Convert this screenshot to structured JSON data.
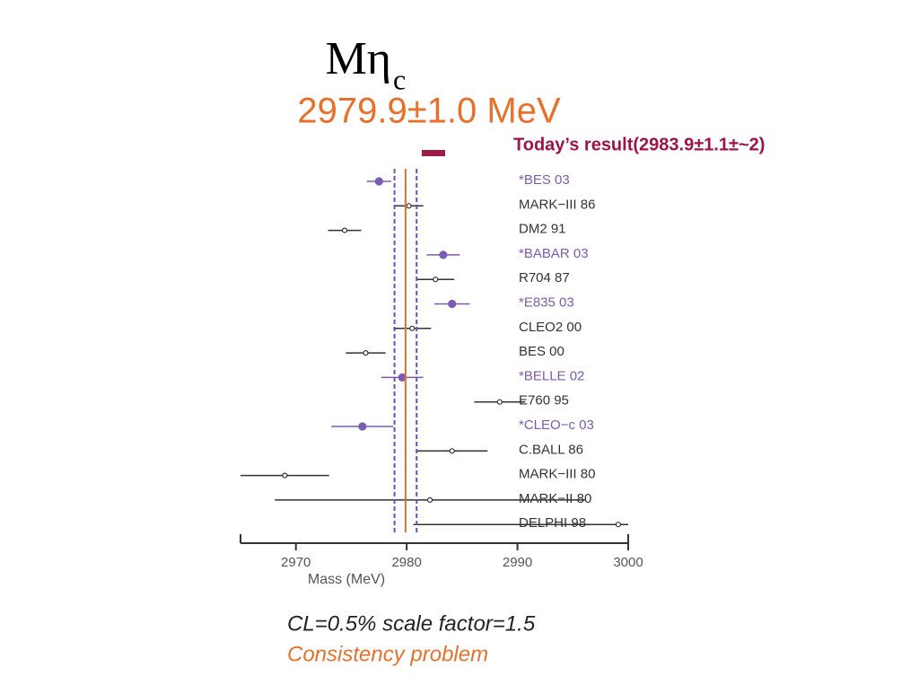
{
  "chart_data": {
    "type": "errorbar",
    "title": "Mη",
    "title_subscript": "c",
    "subtitle": "2979.9±1.0 MeV",
    "annotation": "Today’s result(2983.9±1.1±~2)",
    "categories": [
      "*BES 03",
      "MARK−III 86",
      "DM2 91",
      "*BABAR 03",
      "R704 87",
      "*E835 03",
      "CLEO2 00",
      "BES 00",
      "*BELLE 02",
      "E760 95",
      "*CLEO−c 03",
      "C.BALL 86",
      "MARK−III 80",
      "MARK−II 80",
      "DELPHI 98"
    ],
    "values": [
      2977.5,
      2980.2,
      2974.4,
      2983.3,
      2982.6,
      2984.1,
      2980.5,
      2976.3,
      2979.6,
      2988.4,
      2976.0,
      2984.1,
      2969.0,
      2982.1,
      2999.1
    ],
    "errors": [
      1.1,
      1.3,
      1.5,
      1.5,
      1.7,
      1.6,
      1.7,
      1.8,
      1.9,
      2.3,
      2.8,
      3.2,
      4.0,
      14.0,
      18.5
    ],
    "colors": [
      "#7b5cb3",
      "#333333",
      "#333333",
      "#7b5cb3",
      "#333333",
      "#7b5cb3",
      "#333333",
      "#333333",
      "#7b5cb3",
      "#333333",
      "#7b5cb3",
      "#333333",
      "#333333",
      "#333333",
      "#333333"
    ],
    "average": 2979.9,
    "average_color": "#e8702a",
    "band_lines": [
      2978.9,
      2980.9
    ],
    "band_color": "#6a4fc0",
    "xlim": [
      2965,
      3000
    ],
    "xticks": [
      2970,
      2980,
      2990,
      3000
    ],
    "xlabel": "Mass (MeV)",
    "notes": [
      "CL=0.5%  scale factor=1.5",
      "Consistency problem"
    ]
  }
}
